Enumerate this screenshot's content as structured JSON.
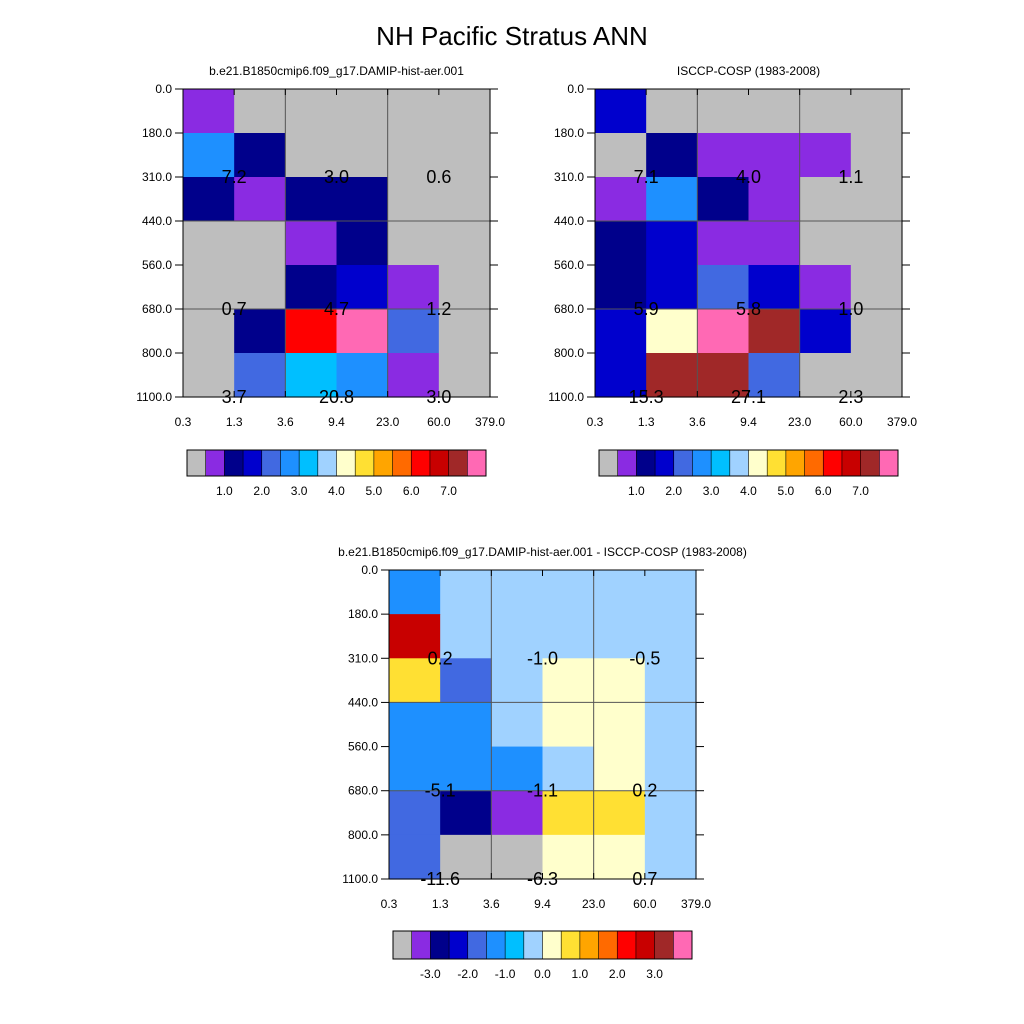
{
  "figure_title": "NH Pacific Stratus ANN",
  "x_ticks": [
    "0.3",
    "1.3",
    "3.6",
    "9.4",
    "23.0",
    "60.0",
    "379.0"
  ],
  "y_ticks": [
    "0.0",
    "180.0",
    "310.0",
    "440.0",
    "560.0",
    "680.0",
    "800.0",
    "1100.0"
  ],
  "palette": [
    "#bebebe",
    "#8a2be2",
    "#00008b",
    "#0000cd",
    "#4169e1",
    "#1e90ff",
    "#00bfff",
    "#a0d2ff",
    "#ffffcc",
    "#ffe033",
    "#ffa500",
    "#ff6a00",
    "#ff0000",
    "#c80000",
    "#a02828",
    "#ff69b4"
  ],
  "chart_data": [
    {
      "type": "heatmap",
      "title": "b.e21.B1850cmip6.f09_g17.DAMIP-hist-aer.001",
      "colors": [
        [
          1,
          0,
          0,
          0,
          0,
          0
        ],
        [
          5,
          2,
          0,
          0,
          0,
          0
        ],
        [
          2,
          1,
          2,
          2,
          0,
          0
        ],
        [
          0,
          0,
          1,
          2,
          0,
          0
        ],
        [
          0,
          0,
          2,
          3,
          1,
          0
        ],
        [
          0,
          2,
          12,
          15,
          4,
          0
        ],
        [
          0,
          4,
          6,
          5,
          1,
          0
        ]
      ],
      "labels": [
        {
          "row": 1,
          "col": 0,
          "text": "7.2"
        },
        {
          "row": 1,
          "col": 2,
          "text": "3.0"
        },
        {
          "row": 1,
          "col": 4,
          "text": "0.6"
        },
        {
          "row": 4,
          "col": 0,
          "text": "0.7"
        },
        {
          "row": 4,
          "col": 2,
          "text": "4.7"
        },
        {
          "row": 4,
          "col": 4,
          "text": "1.2"
        },
        {
          "row": 6,
          "col": 0,
          "text": "3.7"
        },
        {
          "row": 6,
          "col": 2,
          "text": "20.8"
        },
        {
          "row": 6,
          "col": 4,
          "text": "3.0"
        }
      ],
      "colorbar_labels": [
        "1.0",
        "2.0",
        "3.0",
        "4.0",
        "5.0",
        "6.0",
        "7.0"
      ]
    },
    {
      "type": "heatmap",
      "title": "ISCCP-COSP (1983-2008)",
      "colors": [
        [
          3,
          0,
          0,
          0,
          0,
          0
        ],
        [
          0,
          2,
          1,
          1,
          1,
          0
        ],
        [
          1,
          5,
          2,
          1,
          0,
          0
        ],
        [
          2,
          3,
          1,
          1,
          0,
          0
        ],
        [
          2,
          3,
          4,
          3,
          1,
          0
        ],
        [
          3,
          8,
          15,
          14,
          3,
          0
        ],
        [
          3,
          14,
          14,
          4,
          0,
          0
        ]
      ],
      "labels": [
        {
          "row": 1,
          "col": 0,
          "text": "7.1"
        },
        {
          "row": 1,
          "col": 2,
          "text": "4.0"
        },
        {
          "row": 1,
          "col": 4,
          "text": "1.1"
        },
        {
          "row": 4,
          "col": 0,
          "text": "5.9"
        },
        {
          "row": 4,
          "col": 2,
          "text": "5.8"
        },
        {
          "row": 4,
          "col": 4,
          "text": "1.0"
        },
        {
          "row": 6,
          "col": 0,
          "text": "15.3"
        },
        {
          "row": 6,
          "col": 2,
          "text": "27.1"
        },
        {
          "row": 6,
          "col": 4,
          "text": "2.3"
        }
      ],
      "colorbar_labels": [
        "1.0",
        "2.0",
        "3.0",
        "4.0",
        "5.0",
        "6.0",
        "7.0"
      ]
    },
    {
      "type": "heatmap",
      "title": "b.e21.B1850cmip6.f09_g17.DAMIP-hist-aer.001 - ISCCP-COSP (1983-2008)",
      "colors": [
        [
          5,
          7,
          7,
          7,
          7,
          7
        ],
        [
          13,
          7,
          7,
          7,
          7,
          7
        ],
        [
          9,
          4,
          7,
          8,
          8,
          7
        ],
        [
          5,
          5,
          7,
          8,
          8,
          7
        ],
        [
          5,
          5,
          5,
          7,
          8,
          7
        ],
        [
          4,
          2,
          1,
          9,
          9,
          7
        ],
        [
          4,
          0,
          0,
          8,
          8,
          7
        ]
      ],
      "labels": [
        {
          "row": 1,
          "col": 0,
          "text": "0.2"
        },
        {
          "row": 1,
          "col": 2,
          "text": "-1.0"
        },
        {
          "row": 1,
          "col": 4,
          "text": "-0.5"
        },
        {
          "row": 4,
          "col": 0,
          "text": "-5.1"
        },
        {
          "row": 4,
          "col": 2,
          "text": "-1.1"
        },
        {
          "row": 4,
          "col": 4,
          "text": "0.2"
        },
        {
          "row": 6,
          "col": 0,
          "text": "-11.6"
        },
        {
          "row": 6,
          "col": 2,
          "text": "-6.3"
        },
        {
          "row": 6,
          "col": 4,
          "text": "0.7"
        }
      ],
      "colorbar_labels": [
        "-3.0",
        "-2.0",
        "-1.0",
        "0.0",
        "1.0",
        "2.0",
        "3.0"
      ]
    }
  ]
}
